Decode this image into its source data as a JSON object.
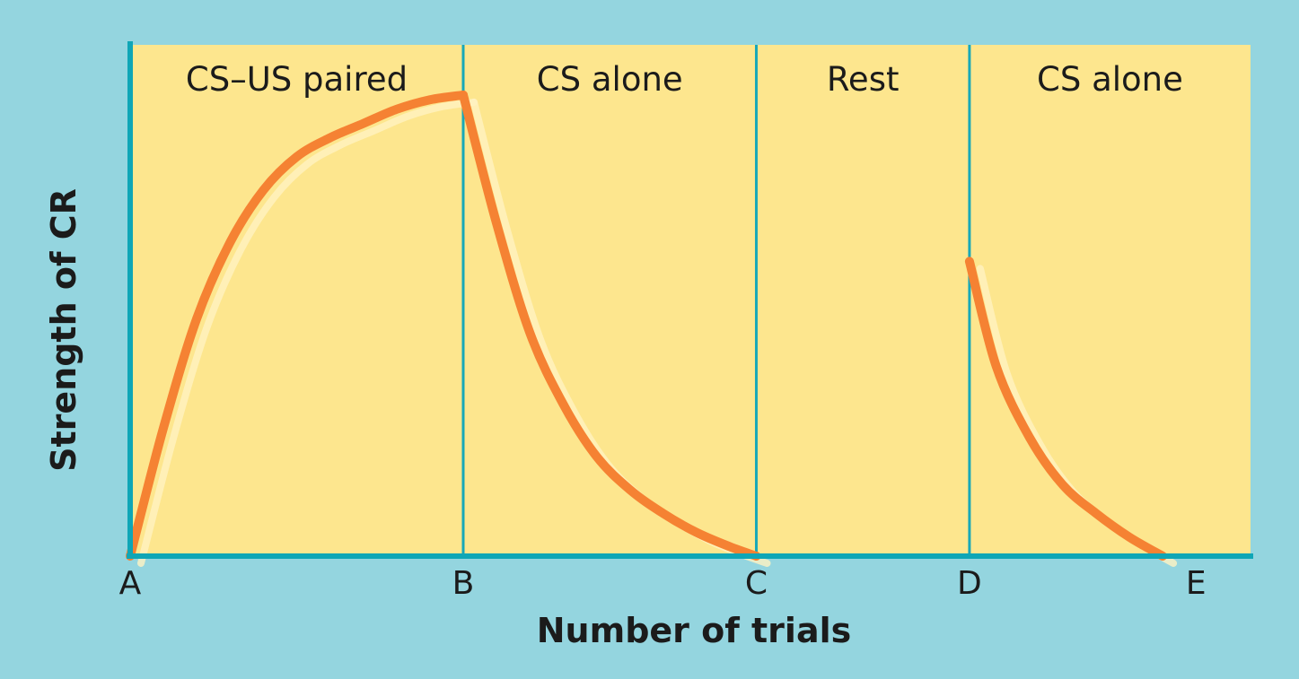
{
  "chart_data": {
    "type": "line",
    "title": "",
    "xlabel": "Number of trials",
    "ylabel": "Strength of CR",
    "xlim": [
      0,
      4.6
    ],
    "ylim": [
      0,
      100
    ],
    "grid": false,
    "x_ticks": [
      {
        "label": "A",
        "x": 0
      },
      {
        "label": "B",
        "x": 1
      },
      {
        "label": "C",
        "x": 1.88
      },
      {
        "label": "D",
        "x": 2.52
      },
      {
        "label": "E",
        "x": 3.2
      }
    ],
    "phases": [
      {
        "label": "CS–US paired",
        "start": 0,
        "end": 1
      },
      {
        "label": "CS alone",
        "start": 1,
        "end": 1.88
      },
      {
        "label": "Rest",
        "start": 1.88,
        "end": 2.52
      },
      {
        "label": "CS alone",
        "start": 2.52,
        "end": 3.35
      }
    ],
    "series": [
      {
        "segments": [
          {
            "x": [
              0,
              0.1,
              0.2,
              0.3,
              0.4,
              0.5,
              0.6,
              0.7,
              0.8,
              0.9,
              1.0
            ],
            "y": [
              0,
              27,
              50,
              66,
              77,
              84,
              88,
              91,
              94,
              96,
              97
            ]
          },
          {
            "x": [
              1.0,
              1.1,
              1.2,
              1.3,
              1.4,
              1.5,
              1.6,
              1.7,
              1.8,
              1.88
            ],
            "y": [
              97,
              70,
              47,
              32,
              21,
              14,
              9,
              5,
              2,
              0
            ]
          },
          {
            "x": [
              2.52,
              2.6,
              2.7,
              2.8,
              2.9,
              3.0,
              3.1
            ],
            "y": [
              62,
              40,
              25,
              15,
              9,
              4,
              0
            ]
          }
        ]
      }
    ],
    "colors": {
      "background": "#94d5df",
      "plot_area": "#fde68e",
      "axis": "#0fa6b6",
      "divider": "#18a8b8",
      "curve": "#f58233",
      "curve_highlight": "#fff3c2"
    }
  }
}
